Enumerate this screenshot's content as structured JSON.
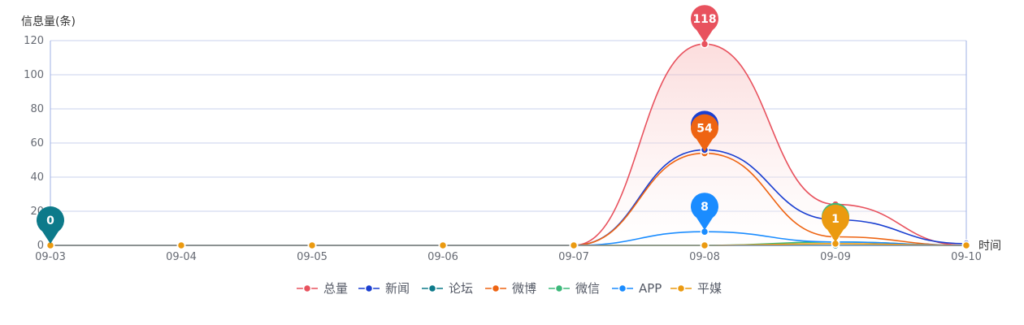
{
  "chart_data": {
    "type": "area",
    "y_axis_name": "信息量(条)",
    "x_axis_name": "时间",
    "categories": [
      "09-03",
      "09-04",
      "09-05",
      "09-06",
      "09-07",
      "09-08",
      "09-09",
      "09-10"
    ],
    "ylim": [
      0,
      120
    ],
    "y_ticks": [
      0,
      20,
      40,
      60,
      80,
      100,
      120
    ],
    "grid": true,
    "legend_position": "bottom",
    "series": [
      {
        "name": "总量",
        "color": "#e8525e",
        "values": [
          0,
          0,
          0,
          0,
          0,
          118,
          24,
          0
        ],
        "area": true
      },
      {
        "name": "新闻",
        "color": "#1a3fd1",
        "values": [
          0,
          0,
          0,
          0,
          0,
          56,
          15,
          1
        ],
        "area": false
      },
      {
        "name": "论坛",
        "color": "#0d7a8a",
        "values": [
          0,
          0,
          0,
          0,
          0,
          0,
          0,
          0
        ],
        "area": false
      },
      {
        "name": "微博",
        "color": "#ee6412",
        "values": [
          0,
          0,
          0,
          0,
          0,
          54,
          5,
          0
        ],
        "area": false
      },
      {
        "name": "微信",
        "color": "#3cb87a",
        "values": [
          0,
          0,
          0,
          0,
          0,
          0,
          2,
          0
        ],
        "area": false
      },
      {
        "name": "APP",
        "color": "#1a8cff",
        "values": [
          0,
          0,
          0,
          0,
          0,
          8,
          2,
          0
        ],
        "area": false
      },
      {
        "name": "平媒",
        "color": "#eb9a10",
        "values": [
          0,
          0,
          0,
          0,
          0,
          0,
          1,
          0
        ],
        "area": false
      }
    ],
    "markers": [
      {
        "label": "118",
        "series": "总量",
        "category": "09-08",
        "value": 118
      },
      {
        "label": "",
        "series": "新闻",
        "category": "09-08",
        "value": 56
      },
      {
        "label": "54",
        "series": "微博",
        "category": "09-08",
        "value": 54
      },
      {
        "label": "8",
        "series": "APP",
        "category": "09-08",
        "value": 8
      },
      {
        "label": "0",
        "series": "论坛",
        "category": "09-03",
        "value": 0
      },
      {
        "label": "",
        "series": "微信",
        "category": "09-09",
        "value": 2
      },
      {
        "label": "1",
        "series": "平媒",
        "category": "09-09",
        "value": 1
      }
    ]
  }
}
